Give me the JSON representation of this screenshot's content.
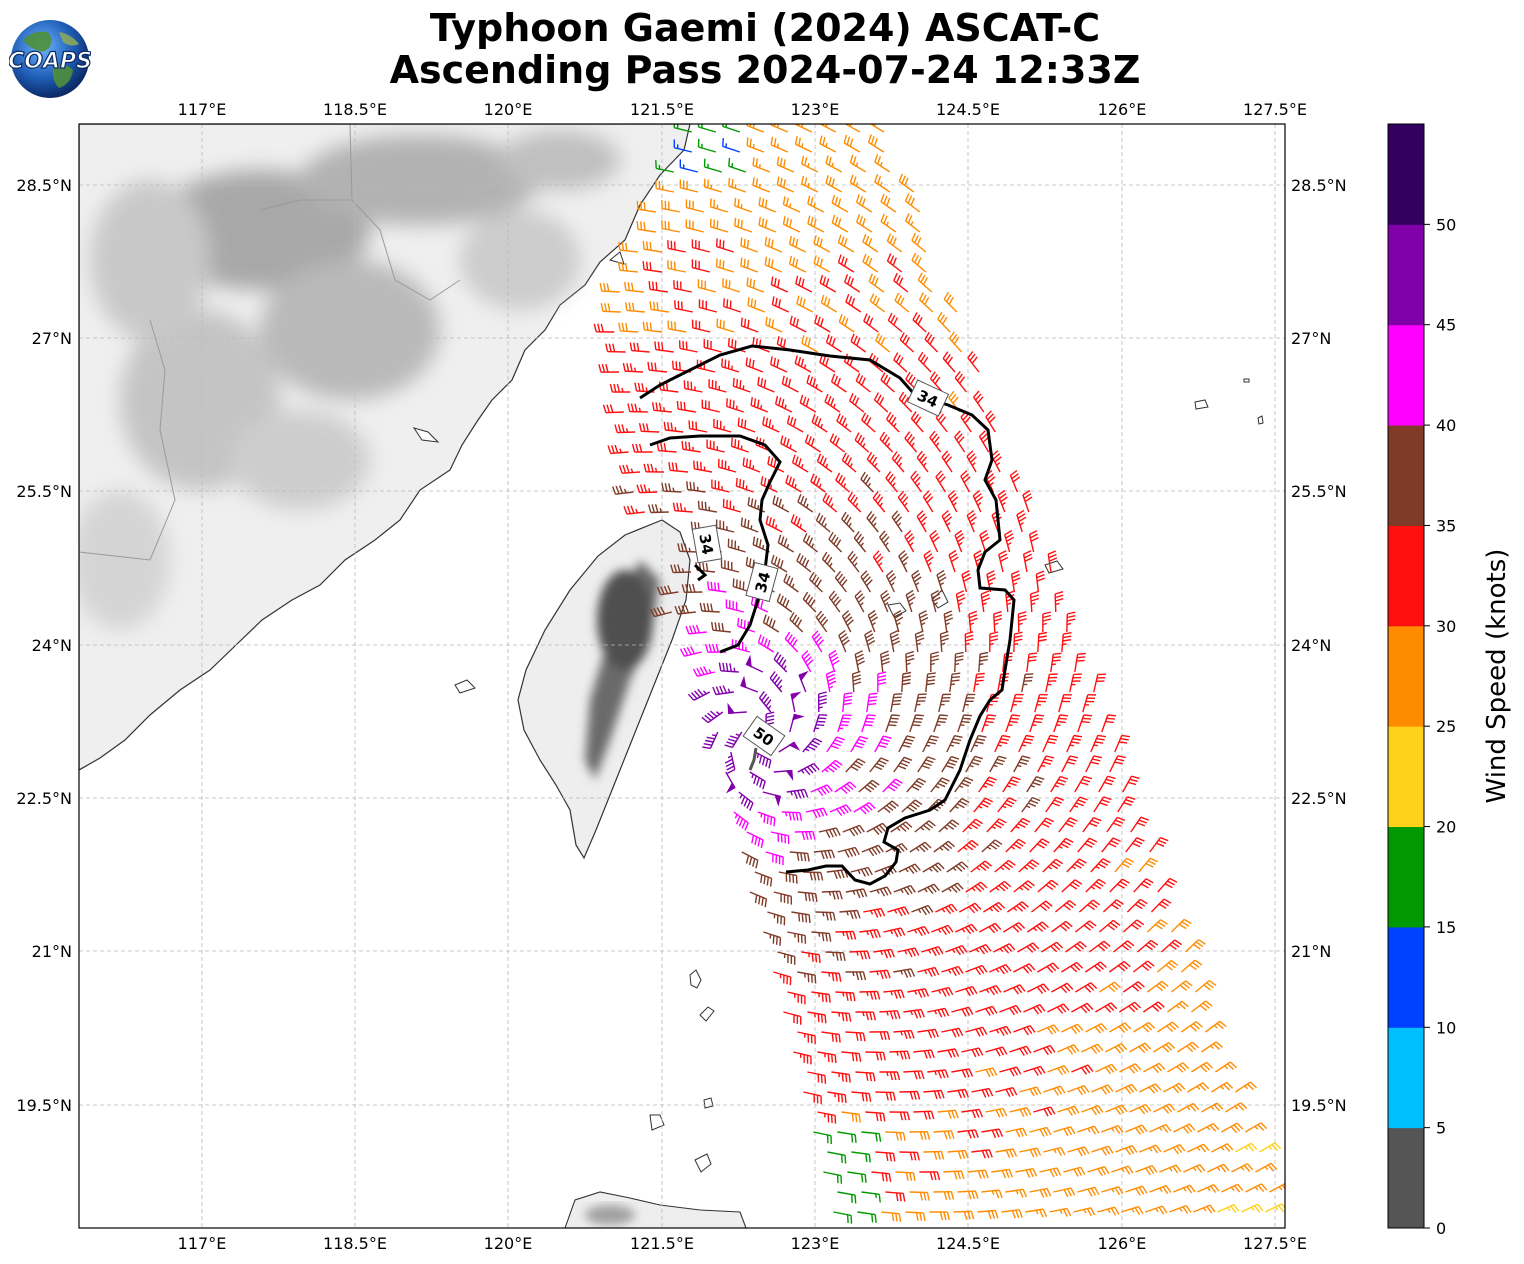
{
  "header": {
    "title_line1": "Typhoon Gaemi (2024) ASCAT-C",
    "title_line2": "Ascending Pass 2024-07-24 12:33Z",
    "logo_text": "COAPS"
  },
  "map": {
    "lon_range": [
      115.6,
      127.6
    ],
    "lat_range": [
      18.2,
      29.1
    ],
    "lon_ticks": [
      "117°E",
      "118.5°E",
      "120°E",
      "121.5°E",
      "123°E",
      "124.5°E",
      "126°E",
      "127.5°E"
    ],
    "lat_ticks": [
      "28.5°N",
      "27°N",
      "25.5°N",
      "24°N",
      "22.5°N",
      "21°N",
      "19.5°N"
    ],
    "background": "grayscale terrain shading over land, white ocean",
    "gridlines": true,
    "contours": [
      {
        "label": "34",
        "color": "#000000"
      },
      {
        "label": "34",
        "color": "#000000"
      },
      {
        "label": "50",
        "color": "#000000"
      }
    ]
  },
  "colorbar": {
    "label": "Wind Speed (knots)",
    "tick_labels": [
      "0",
      "5",
      "10",
      "15",
      "20",
      "25",
      "30",
      "35",
      "40",
      "45",
      "50"
    ],
    "bins": [
      {
        "range": "0-5",
        "color": "#555555"
      },
      {
        "range": "5-10",
        "color": "#00bfff"
      },
      {
        "range": "10-15",
        "color": "#0040ff"
      },
      {
        "range": "15-20",
        "color": "#009900"
      },
      {
        "range": "20-25",
        "color": "#ffd11a"
      },
      {
        "range": "25-30",
        "color": "#ff8c00"
      },
      {
        "range": "30-35",
        "color": "#ff0f0f"
      },
      {
        "range": "35-40",
        "color": "#7f3b27"
      },
      {
        "range": "40-45",
        "color": "#ff00ff"
      },
      {
        "range": "45-50",
        "color": "#8200aa"
      },
      {
        "range": "50+",
        "color": "#330060"
      }
    ]
  },
  "swath": {
    "description_units": "wind barbs, knots",
    "typhoon_center_approx": {
      "lon": 122.3,
      "lat": 23.3
    }
  }
}
